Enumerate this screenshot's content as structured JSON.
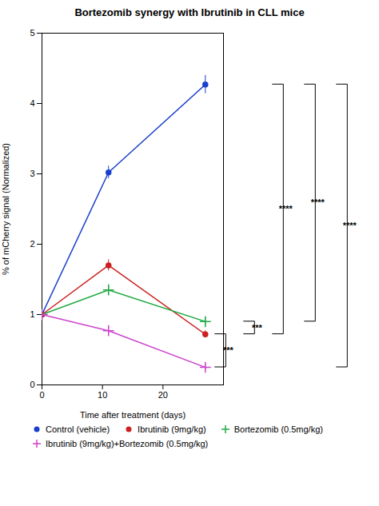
{
  "chart_data": {
    "type": "line",
    "title": "Bortezomib synergy with Ibrutinib in CLL mice",
    "xlabel": "Time after treatment (days)",
    "ylabel": "% of mCherry signal (Normalized)",
    "x": [
      0,
      11,
      27
    ],
    "xlim": [
      0,
      30
    ],
    "ylim": [
      0,
      5
    ],
    "xticks": [
      0,
      10,
      20
    ],
    "yticks": [
      0,
      1,
      2,
      3,
      4,
      5
    ],
    "grid": false,
    "legend": "bottom",
    "series": [
      {
        "name": "Control (vehicle)",
        "color": "#1a3fcc",
        "marker": "circle",
        "values": [
          1.0,
          3.02,
          4.27
        ],
        "yerr": [
          0.05,
          0.09,
          0.13
        ]
      },
      {
        "name": "Ibrutinib (9mg/kg)",
        "color": "#cc2020",
        "marker": "circle",
        "values": [
          1.0,
          1.7,
          0.72
        ],
        "yerr": [
          0.04,
          0.08,
          0.05
        ]
      },
      {
        "name": "Bortezomib (0.5mg/kg)",
        "color": "#22aa44",
        "marker": "plus",
        "values": [
          1.0,
          1.35,
          0.9
        ],
        "yerr": [
          0.04,
          0.07,
          0.05
        ]
      },
      {
        "name": "Ibrutinib (9mg/kg)+Bortezomib (0.5mg/kg)",
        "color": "#cc44cc",
        "marker": "plus",
        "values": [
          1.0,
          0.77,
          0.25
        ],
        "yerr": [
          0.04,
          0.05,
          0.04
        ]
      }
    ],
    "annotations": [
      {
        "text": "***",
        "x": 27,
        "between": [
          "Ibrutinib (9mg/kg)+Bortezomib (0.5mg/kg)",
          "Ibrutinib (9mg/kg)"
        ]
      },
      {
        "text": "***",
        "x": 27,
        "between": [
          "Ibrutinib (9mg/kg)",
          "Bortezomib (0.5mg/kg)"
        ]
      },
      {
        "text": "****",
        "x": 27,
        "between": [
          "Ibrutinib (9mg/kg)",
          "Control (vehicle)"
        ]
      },
      {
        "text": "****",
        "x": 27,
        "between": [
          "Bortezomib (0.5mg/kg)",
          "Control (vehicle)"
        ]
      },
      {
        "text": "****",
        "x": 27,
        "between": [
          "Ibrutinib (9mg/kg)+Bortezomib (0.5mg/kg)",
          "Control (vehicle)"
        ]
      }
    ]
  }
}
